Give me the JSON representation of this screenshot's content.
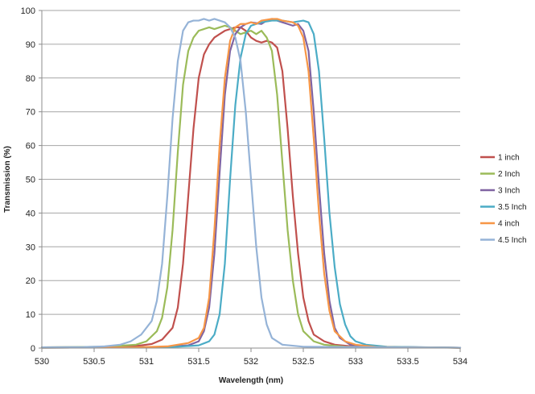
{
  "chart_data": {
    "type": "line",
    "xlabel": "Wavelength (nm)",
    "ylabel": "Transmission (%)",
    "xlim": [
      530,
      534
    ],
    "ylim": [
      0,
      100
    ],
    "xticks": [
      "530",
      "530.5",
      "531",
      "531.5",
      "532",
      "532.5",
      "533",
      "533.5",
      "534"
    ],
    "yticks": [
      "0",
      "10",
      "20",
      "30",
      "40",
      "50",
      "60",
      "70",
      "80",
      "90",
      "100"
    ],
    "grid": "horizontal",
    "legend": "right",
    "series": [
      {
        "name": "1 inch",
        "color": "#c0504d",
        "points": [
          [
            530,
            0.2
          ],
          [
            530.6,
            0.3
          ],
          [
            530.9,
            0.6
          ],
          [
            531.05,
            1.2
          ],
          [
            531.15,
            2.5
          ],
          [
            531.25,
            6
          ],
          [
            531.3,
            12
          ],
          [
            531.35,
            25
          ],
          [
            531.4,
            45
          ],
          [
            531.45,
            65
          ],
          [
            531.5,
            80
          ],
          [
            531.55,
            87
          ],
          [
            531.6,
            90
          ],
          [
            531.65,
            92
          ],
          [
            531.7,
            93
          ],
          [
            531.75,
            94
          ],
          [
            531.8,
            94.5
          ],
          [
            531.85,
            95
          ],
          [
            531.9,
            95
          ],
          [
            531.95,
            94
          ],
          [
            532.0,
            92
          ],
          [
            532.05,
            91
          ],
          [
            532.1,
            90.5
          ],
          [
            532.15,
            91
          ],
          [
            532.2,
            90.5
          ],
          [
            532.25,
            89
          ],
          [
            532.3,
            82
          ],
          [
            532.35,
            65
          ],
          [
            532.4,
            45
          ],
          [
            532.45,
            28
          ],
          [
            532.5,
            15
          ],
          [
            532.55,
            8
          ],
          [
            532.6,
            4
          ],
          [
            532.7,
            2
          ],
          [
            532.8,
            1
          ],
          [
            533.0,
            0.4
          ],
          [
            534,
            0.1
          ]
        ]
      },
      {
        "name": "2 Inch",
        "color": "#9bbb59",
        "points": [
          [
            530,
            0.2
          ],
          [
            530.6,
            0.4
          ],
          [
            530.9,
            1
          ],
          [
            531.0,
            2
          ],
          [
            531.1,
            5
          ],
          [
            531.15,
            9
          ],
          [
            531.2,
            18
          ],
          [
            531.25,
            35
          ],
          [
            531.3,
            58
          ],
          [
            531.35,
            78
          ],
          [
            531.4,
            88
          ],
          [
            531.45,
            92
          ],
          [
            531.5,
            94
          ],
          [
            531.55,
            94.5
          ],
          [
            531.6,
            95
          ],
          [
            531.65,
            94.5
          ],
          [
            531.7,
            95
          ],
          [
            531.75,
            95.5
          ],
          [
            531.8,
            95
          ],
          [
            531.85,
            94
          ],
          [
            531.9,
            93
          ],
          [
            531.95,
            93.5
          ],
          [
            532.0,
            94
          ],
          [
            532.05,
            93
          ],
          [
            532.1,
            94
          ],
          [
            532.15,
            92
          ],
          [
            532.2,
            88
          ],
          [
            532.25,
            75
          ],
          [
            532.3,
            55
          ],
          [
            532.35,
            35
          ],
          [
            532.4,
            20
          ],
          [
            532.45,
            10
          ],
          [
            532.5,
            5
          ],
          [
            532.6,
            2
          ],
          [
            532.7,
            1
          ],
          [
            532.9,
            0.4
          ],
          [
            534,
            0.1
          ]
        ]
      },
      {
        "name": "3 Inch",
        "color": "#8064a2",
        "points": [
          [
            530,
            0.1
          ],
          [
            530.9,
            0.2
          ],
          [
            531.2,
            0.4
          ],
          [
            531.4,
            0.8
          ],
          [
            531.5,
            2
          ],
          [
            531.55,
            5
          ],
          [
            531.6,
            12
          ],
          [
            531.65,
            28
          ],
          [
            531.7,
            52
          ],
          [
            531.75,
            75
          ],
          [
            531.8,
            88
          ],
          [
            531.85,
            93
          ],
          [
            531.9,
            95
          ],
          [
            531.95,
            96
          ],
          [
            532.0,
            96.5
          ],
          [
            532.1,
            96
          ],
          [
            532.15,
            97
          ],
          [
            532.2,
            97.5
          ],
          [
            532.25,
            97
          ],
          [
            532.3,
            96.5
          ],
          [
            532.35,
            96
          ],
          [
            532.4,
            95.5
          ],
          [
            532.45,
            96
          ],
          [
            532.5,
            94
          ],
          [
            532.55,
            88
          ],
          [
            532.6,
            70
          ],
          [
            532.65,
            48
          ],
          [
            532.7,
            28
          ],
          [
            532.75,
            14
          ],
          [
            532.8,
            6
          ],
          [
            532.85,
            3
          ],
          [
            532.95,
            1
          ],
          [
            533.1,
            0.4
          ],
          [
            534,
            0.1
          ]
        ]
      },
      {
        "name": "3.5 Inch",
        "color": "#4bacc6",
        "points": [
          [
            530,
            0.1
          ],
          [
            530.9,
            0.2
          ],
          [
            531.3,
            0.4
          ],
          [
            531.5,
            0.8
          ],
          [
            531.6,
            2
          ],
          [
            531.65,
            4
          ],
          [
            531.7,
            10
          ],
          [
            531.75,
            25
          ],
          [
            531.8,
            50
          ],
          [
            531.85,
            72
          ],
          [
            531.9,
            86
          ],
          [
            531.95,
            93
          ],
          [
            532.0,
            95.5
          ],
          [
            532.05,
            96
          ],
          [
            532.1,
            96.5
          ],
          [
            532.2,
            97
          ],
          [
            532.3,
            97
          ],
          [
            532.4,
            96.5
          ],
          [
            532.5,
            97
          ],
          [
            532.55,
            96.5
          ],
          [
            532.6,
            93
          ],
          [
            532.65,
            82
          ],
          [
            532.7,
            62
          ],
          [
            532.75,
            40
          ],
          [
            532.8,
            24
          ],
          [
            532.85,
            13
          ],
          [
            532.9,
            7
          ],
          [
            532.95,
            3.5
          ],
          [
            533.0,
            2
          ],
          [
            533.1,
            1
          ],
          [
            533.3,
            0.4
          ],
          [
            534,
            0.1
          ]
        ]
      },
      {
        "name": "4 inch",
        "color": "#f79646",
        "points": [
          [
            530,
            0.1
          ],
          [
            530.9,
            0.2
          ],
          [
            531.2,
            0.5
          ],
          [
            531.4,
            1.5
          ],
          [
            531.5,
            3
          ],
          [
            531.55,
            6
          ],
          [
            531.6,
            15
          ],
          [
            531.65,
            35
          ],
          [
            531.7,
            60
          ],
          [
            531.75,
            80
          ],
          [
            531.8,
            91
          ],
          [
            531.85,
            95
          ],
          [
            531.9,
            96
          ],
          [
            531.95,
            96
          ],
          [
            532.0,
            96.5
          ],
          [
            532.05,
            96
          ],
          [
            532.1,
            97
          ],
          [
            532.2,
            97.5
          ],
          [
            532.25,
            97.5
          ],
          [
            532.3,
            97
          ],
          [
            532.4,
            96.5
          ],
          [
            532.45,
            95.5
          ],
          [
            532.5,
            92
          ],
          [
            532.55,
            82
          ],
          [
            532.6,
            62
          ],
          [
            532.65,
            40
          ],
          [
            532.7,
            22
          ],
          [
            532.75,
            11
          ],
          [
            532.8,
            5
          ],
          [
            532.9,
            2
          ],
          [
            533.0,
            1
          ],
          [
            533.2,
            0.3
          ],
          [
            534,
            0.1
          ]
        ]
      },
      {
        "name": "4.5 Inch",
        "color": "#95b3d7",
        "points": [
          [
            530,
            0.2
          ],
          [
            530.4,
            0.3
          ],
          [
            530.6,
            0.5
          ],
          [
            530.75,
            1
          ],
          [
            530.85,
            2
          ],
          [
            530.95,
            4
          ],
          [
            531.05,
            8
          ],
          [
            531.1,
            14
          ],
          [
            531.15,
            25
          ],
          [
            531.2,
            45
          ],
          [
            531.25,
            68
          ],
          [
            531.3,
            85
          ],
          [
            531.35,
            94
          ],
          [
            531.4,
            96.5
          ],
          [
            531.45,
            97
          ],
          [
            531.5,
            97
          ],
          [
            531.55,
            97.5
          ],
          [
            531.6,
            97
          ],
          [
            531.65,
            97.5
          ],
          [
            531.7,
            97
          ],
          [
            531.75,
            96.5
          ],
          [
            531.8,
            95
          ],
          [
            531.85,
            92
          ],
          [
            531.9,
            85
          ],
          [
            531.95,
            70
          ],
          [
            532.0,
            50
          ],
          [
            532.05,
            30
          ],
          [
            532.1,
            15
          ],
          [
            532.15,
            7
          ],
          [
            532.2,
            3
          ],
          [
            532.3,
            1
          ],
          [
            532.5,
            0.4
          ],
          [
            534,
            0.1
          ]
        ]
      }
    ]
  }
}
